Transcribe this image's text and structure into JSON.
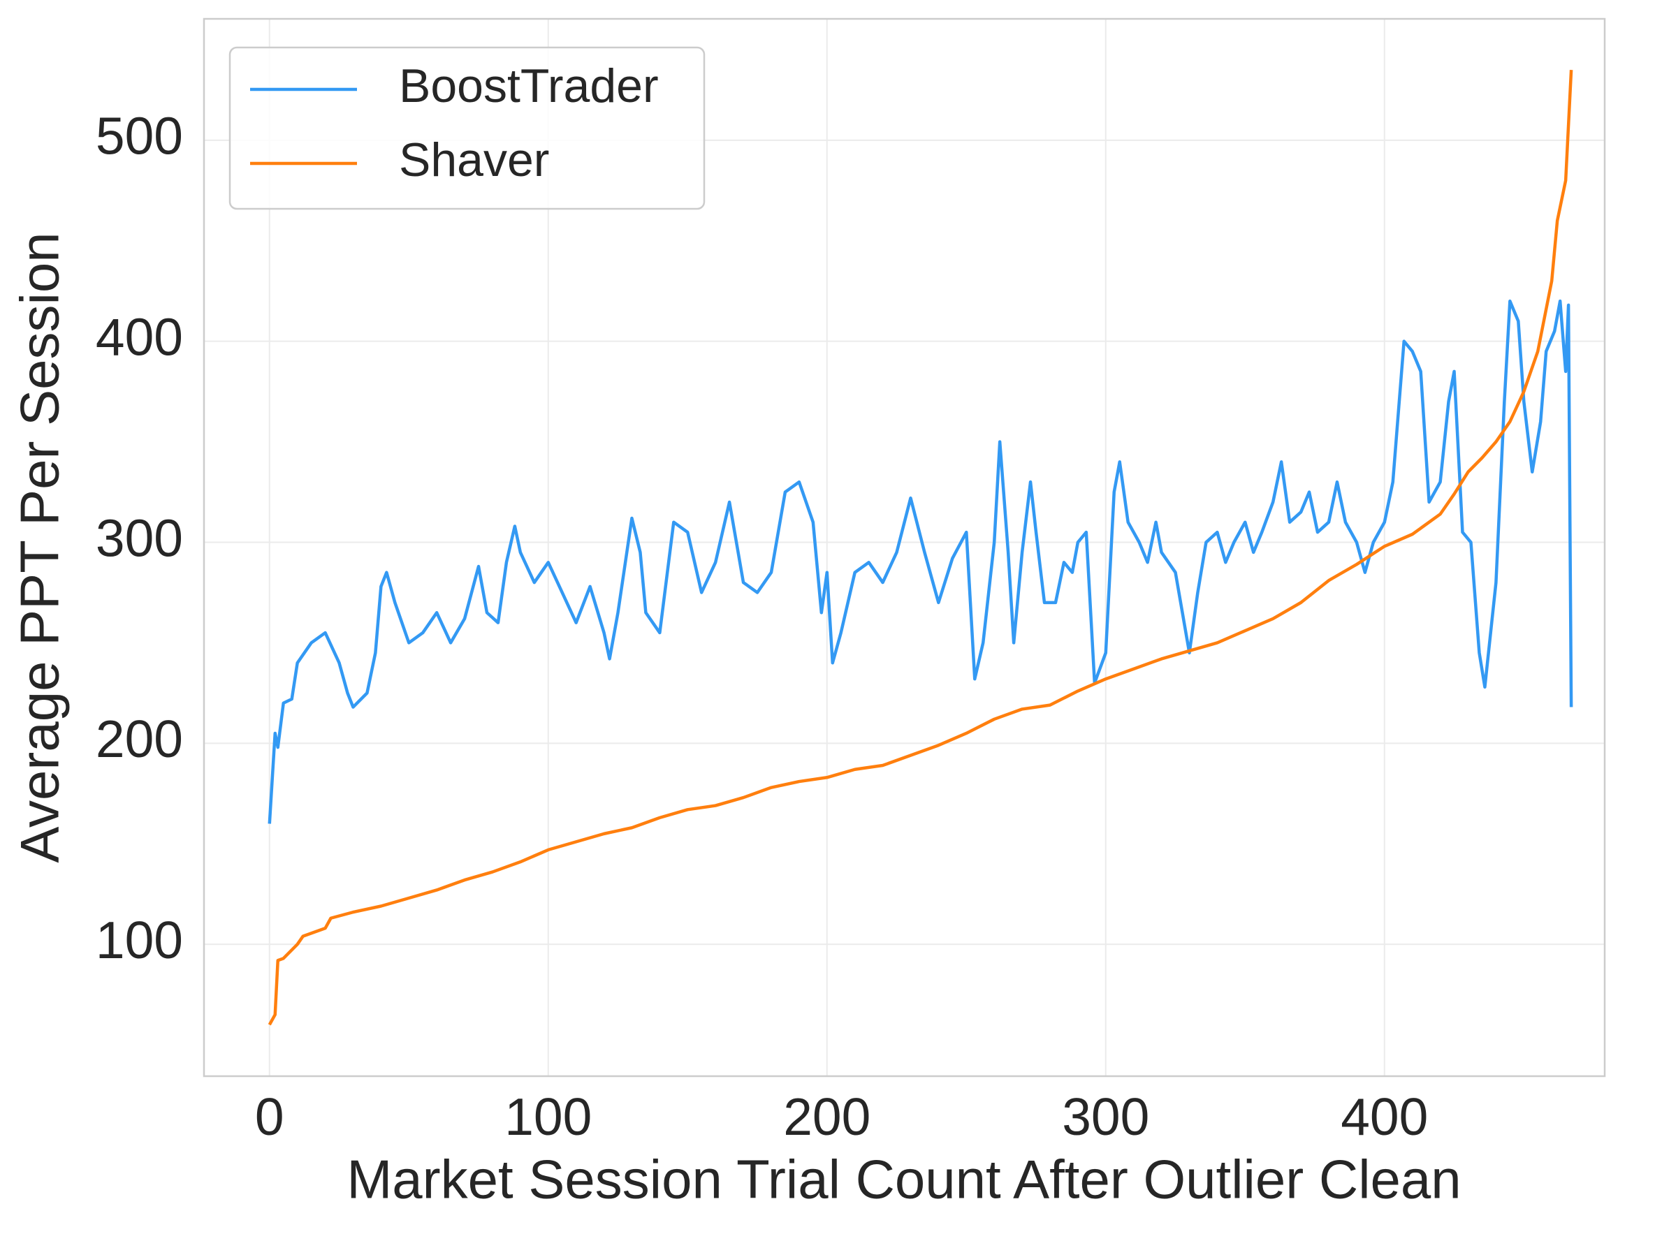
{
  "chart_data": {
    "type": "line",
    "xlabel": "Market Session Trial Count After Outlier Clean",
    "ylabel": "Average PPT Per Session",
    "xlim": [
      -23.5,
      479
    ],
    "ylim": [
      34.4,
      560.4
    ],
    "xticks": [
      0,
      100,
      200,
      300,
      400
    ],
    "yticks": [
      100,
      200,
      300,
      400,
      500
    ],
    "grid": true,
    "legend": "upper left",
    "series": [
      {
        "name": "BoostTrader",
        "color": "#3399f3",
        "x": [
          0,
          2,
          3,
          5,
          8,
          10,
          15,
          20,
          25,
          28,
          30,
          35,
          38,
          40,
          42,
          45,
          50,
          55,
          60,
          65,
          70,
          75,
          78,
          82,
          85,
          88,
          90,
          95,
          100,
          105,
          110,
          115,
          120,
          122,
          125,
          130,
          133,
          135,
          140,
          145,
          150,
          155,
          160,
          165,
          170,
          175,
          180,
          185,
          190,
          195,
          198,
          200,
          202,
          205,
          210,
          215,
          220,
          225,
          230,
          235,
          240,
          245,
          250,
          253,
          256,
          260,
          262,
          265,
          267,
          270,
          273,
          275,
          278,
          282,
          285,
          288,
          290,
          293,
          296,
          300,
          303,
          305,
          308,
          312,
          315,
          318,
          320,
          325,
          330,
          333,
          336,
          340,
          343,
          346,
          350,
          353,
          356,
          360,
          363,
          366,
          370,
          373,
          376,
          380,
          383,
          386,
          390,
          393,
          396,
          400,
          403,
          407,
          410,
          413,
          416,
          420,
          423,
          425,
          428,
          431,
          434,
          436,
          440,
          443,
          445,
          448,
          450,
          453,
          456,
          458,
          461,
          463,
          465,
          466,
          467
        ],
        "values": [
          160,
          205,
          198,
          220,
          222,
          240,
          250,
          255,
          240,
          225,
          218,
          225,
          245,
          278,
          285,
          270,
          250,
          255,
          265,
          250,
          262,
          288,
          265,
          260,
          290,
          308,
          295,
          280,
          290,
          275,
          260,
          278,
          255,
          242,
          265,
          312,
          295,
          265,
          255,
          310,
          305,
          275,
          290,
          320,
          280,
          275,
          285,
          325,
          330,
          310,
          265,
          285,
          240,
          255,
          285,
          290,
          280,
          295,
          322,
          295,
          270,
          292,
          305,
          232,
          250,
          300,
          350,
          295,
          250,
          295,
          330,
          305,
          270,
          270,
          290,
          285,
          300,
          305,
          230,
          245,
          325,
          340,
          310,
          300,
          290,
          310,
          295,
          285,
          245,
          275,
          300,
          305,
          290,
          300,
          310,
          295,
          305,
          320,
          340,
          310,
          315,
          325,
          305,
          310,
          330,
          310,
          300,
          285,
          300,
          310,
          330,
          400,
          395,
          385,
          320,
          330,
          370,
          385,
          305,
          300,
          245,
          228,
          280,
          370,
          420,
          410,
          370,
          335,
          360,
          395,
          405,
          420,
          385,
          418,
          218
        ]
      },
      {
        "name": "Shaver",
        "color": "#ff7f0e",
        "x": [
          0,
          2,
          3,
          5,
          10,
          12,
          20,
          22,
          30,
          40,
          50,
          60,
          70,
          80,
          90,
          100,
          110,
          120,
          130,
          140,
          150,
          160,
          170,
          180,
          190,
          200,
          210,
          220,
          230,
          240,
          250,
          260,
          270,
          280,
          290,
          300,
          310,
          320,
          330,
          340,
          350,
          360,
          370,
          380,
          390,
          400,
          410,
          420,
          425,
          430,
          435,
          440,
          445,
          450,
          455,
          460,
          462,
          465,
          467
        ],
        "values": [
          60,
          65,
          92,
          93,
          100,
          104,
          108,
          113,
          116,
          119,
          123,
          127,
          132,
          136,
          141,
          147,
          151,
          155,
          158,
          163,
          167,
          169,
          173,
          178,
          181,
          183,
          187,
          189,
          194,
          199,
          205,
          212,
          217,
          219,
          226,
          232,
          237,
          242,
          246,
          250,
          256,
          262,
          270,
          281,
          289,
          298,
          304,
          314,
          324,
          335,
          342,
          350,
          360,
          375,
          395,
          430,
          460,
          480,
          535
        ]
      }
    ]
  }
}
